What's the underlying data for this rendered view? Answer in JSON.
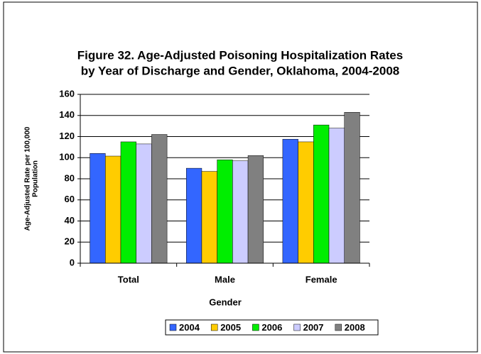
{
  "chart_data": {
    "type": "bar",
    "title": [
      "Figure 32. Age-Adjusted Poisoning Hospitalization Rates",
      "by Year of Discharge and Gender, Oklahoma, 2004-2008"
    ],
    "y_label": [
      "Age-Adjusted Rate per 100,000",
      "Population"
    ],
    "x_label": "Gender",
    "categories": [
      "Total",
      "Male",
      "Female"
    ],
    "series": [
      {
        "name": "2004",
        "color": "#3366ff",
        "values": [
          104,
          90,
          117.5
        ]
      },
      {
        "name": "2005",
        "color": "#ffcc00",
        "values": [
          101.5,
          87,
          115
        ]
      },
      {
        "name": "2006",
        "color": "#00ee00",
        "values": [
          115,
          98,
          131
        ]
      },
      {
        "name": "2007",
        "color": "#ccccff",
        "values": [
          113,
          97,
          128
        ]
      },
      {
        "name": "2008",
        "color": "#808080",
        "values": [
          122,
          102,
          143
        ]
      }
    ],
    "ylim": [
      0,
      160
    ],
    "yticks": [
      0,
      20,
      40,
      60,
      80,
      100,
      120,
      140,
      160
    ],
    "grid": true,
    "legend": "bottom"
  }
}
